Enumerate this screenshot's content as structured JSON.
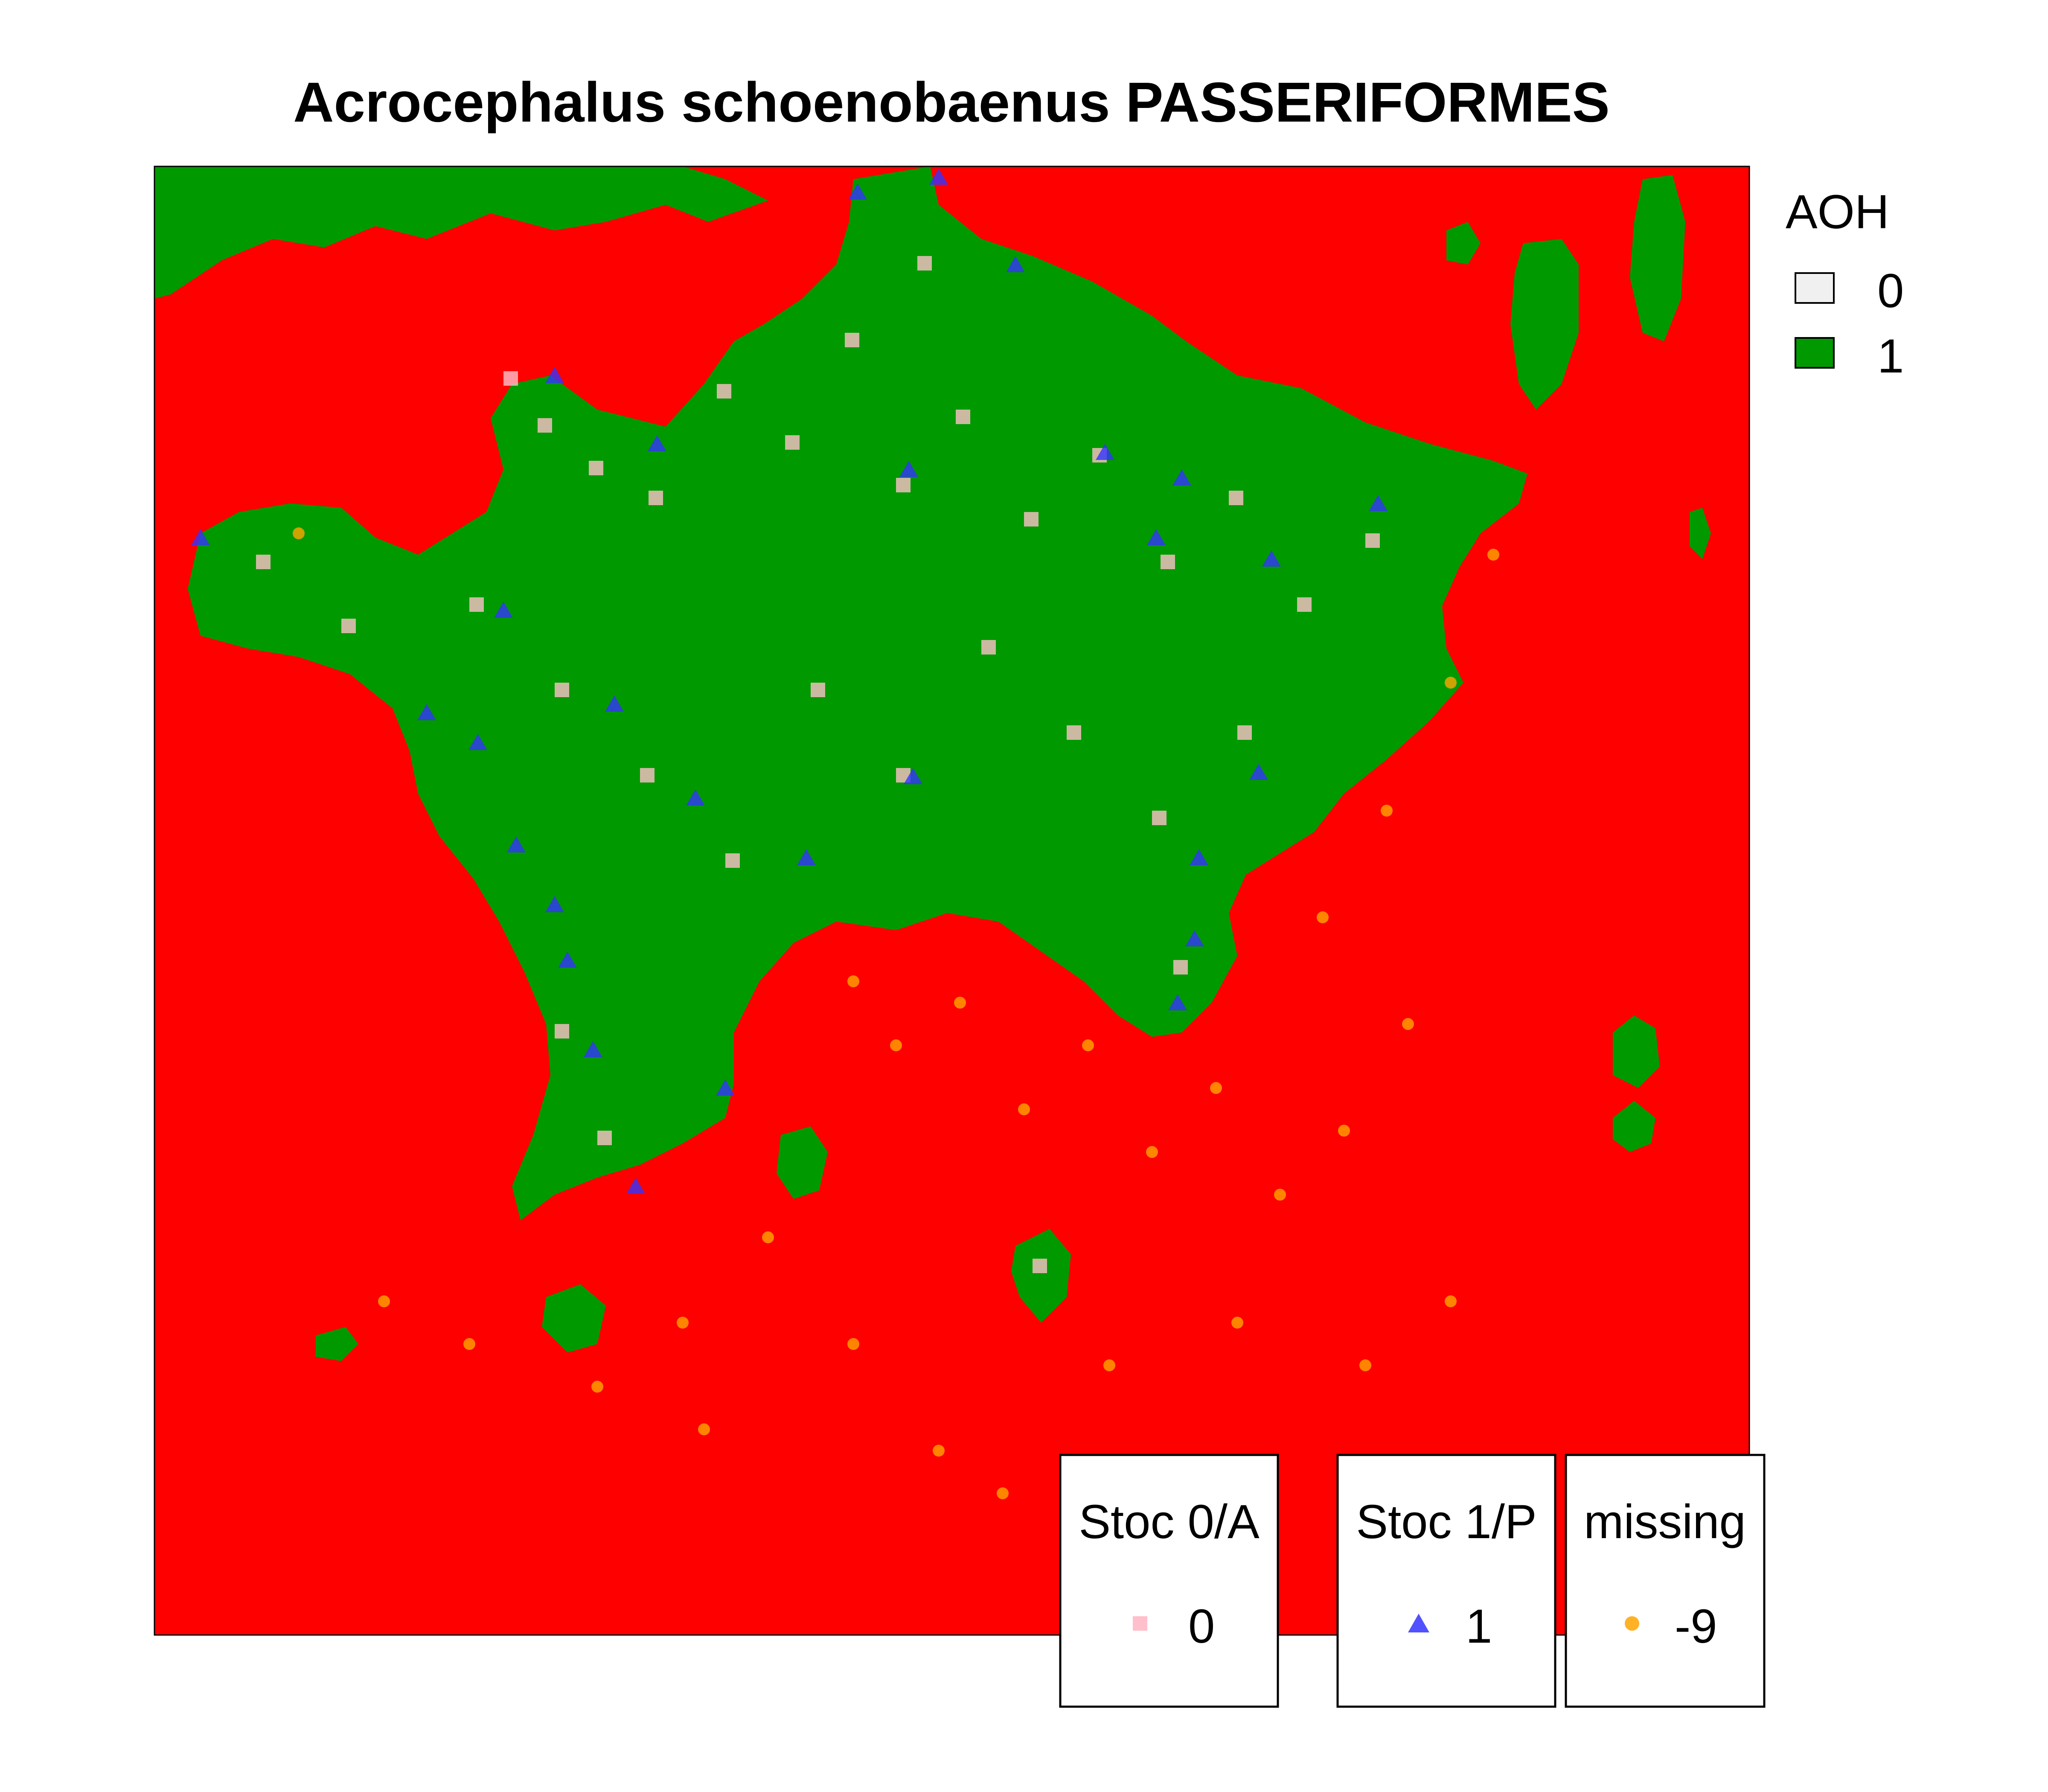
{
  "title": "Acrocephalus schoenobaenus PASSERIFORMES",
  "colors": {
    "background": "#ff0000",
    "aoh_present": "#009900",
    "aoh_absent": "#f0f0f0",
    "absence_marker": "#ffc0cb",
    "presence_marker": "#3333ff",
    "missing_marker": "#ffa500"
  },
  "aoh_legend": {
    "title": "AOH",
    "items": [
      {
        "label": "0",
        "color": "#f0f0f0"
      },
      {
        "label": "1",
        "color": "#009900"
      }
    ]
  },
  "point_legends": [
    {
      "title": "Stoc 0/A",
      "label": "0",
      "shape": "square",
      "color": "#ffc0cb"
    },
    {
      "title": "Stoc 1/P",
      "label": "1",
      "shape": "triangle",
      "color": "#3333ff"
    },
    {
      "title": "missing",
      "label": "-9",
      "shape": "circle",
      "color": "#ffa500"
    }
  ]
}
